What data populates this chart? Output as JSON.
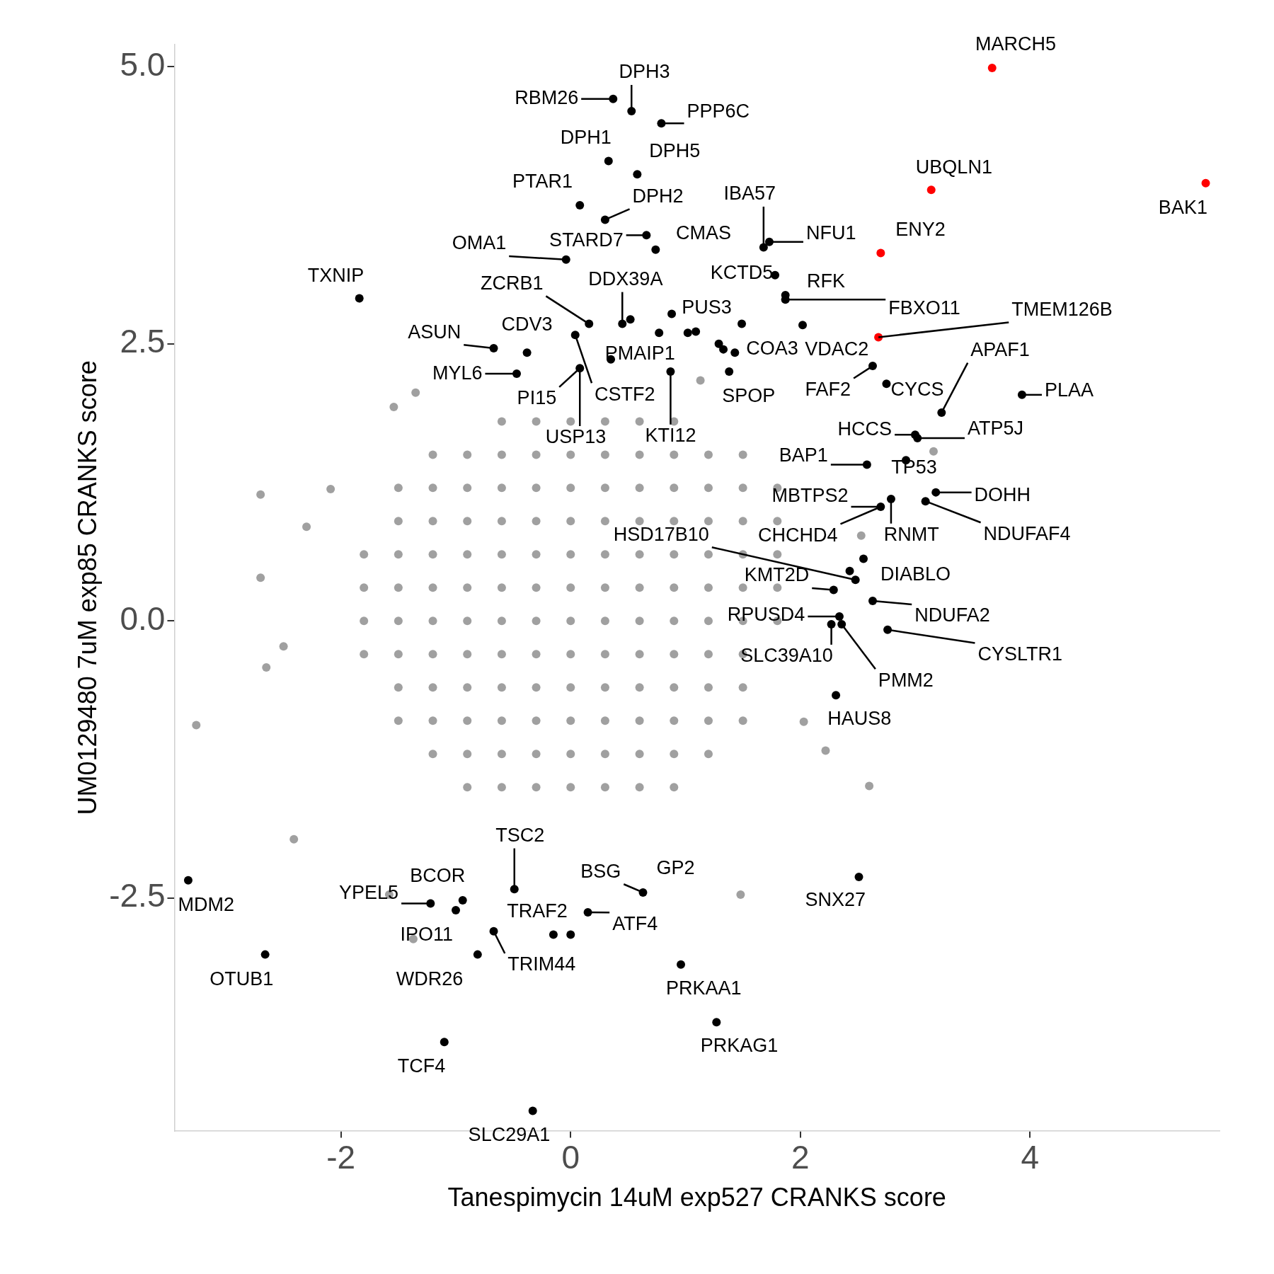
{
  "chart_data": {
    "type": "scatter",
    "xlabel": "Tanespimycin 14uM exp527 CRANKS score",
    "ylabel": "UM0129480 7uM exp85 CRANKS score",
    "xlim": [
      -3.45,
      5.65
    ],
    "ylim": [
      -4.6,
      5.2
    ],
    "xticks": [
      -2,
      0,
      2,
      4
    ],
    "yticks": [
      -2.5,
      {
        "value": 0,
        "label": "0.0"
      },
      2.5,
      {
        "value": 5,
        "label": "5.0"
      }
    ],
    "grid": false,
    "legend": false,
    "marker": "circle",
    "series": [
      {
        "color": "#a0a0a0",
        "x": [
          -0.6,
          -0.3,
          0,
          0.3,
          0.6,
          0.9,
          -1.2,
          -0.9,
          -0.6,
          -0.3,
          0,
          0.3,
          0.6,
          0.9,
          1.2,
          1.5,
          -1.5,
          -1.2,
          -0.9,
          -0.6,
          -0.3,
          0,
          0.3,
          0.6,
          0.9,
          1.2,
          1.5,
          1.8,
          -1.5,
          -1.2,
          -0.9,
          -0.6,
          -0.3,
          0,
          0.3,
          0.6,
          0.9,
          1.2,
          1.5,
          1.8,
          -1.8,
          -1.5,
          -1.2,
          -0.9,
          -0.6,
          -0.3,
          0,
          0.3,
          0.6,
          0.9,
          1.2,
          1.5,
          1.8,
          -1.8,
          -1.5,
          -1.2,
          -0.9,
          -0.6,
          -0.3,
          0,
          0.3,
          0.6,
          0.9,
          1.2,
          1.5,
          1.8,
          -1.8,
          -1.5,
          -1.2,
          -0.9,
          -0.6,
          -0.3,
          0,
          0.3,
          0.6,
          0.9,
          1.2,
          1.5,
          1.8,
          -1.8,
          -1.5,
          -1.2,
          -0.9,
          -0.6,
          -0.3,
          0,
          0.3,
          0.6,
          0.9,
          1.2,
          1.5,
          -1.5,
          -1.2,
          -0.9,
          -0.6,
          -0.3,
          0,
          0.3,
          0.6,
          0.9,
          1.2,
          1.5,
          -1.5,
          -1.2,
          -0.9,
          -0.6,
          -0.3,
          0,
          0.3,
          0.6,
          0.9,
          1.2,
          1.5,
          -1.2,
          -0.9,
          -0.6,
          -0.3,
          0,
          0.3,
          0.6,
          0.9,
          1.2,
          -0.9,
          -0.6,
          -0.3,
          0,
          0.3,
          0.6,
          0.9,
          -2.7,
          -2.7,
          -3.26,
          -2.65,
          2.6,
          1.48,
          2.22,
          -1.54,
          -1.35,
          -2.3,
          -2.5,
          -2.41,
          -2.09,
          -1.58,
          -1.37,
          1.13,
          3.16,
          2.53,
          2.03
        ],
        "values": [
          1.8,
          1.8,
          1.8,
          1.8,
          1.8,
          1.8,
          1.5,
          1.5,
          1.5,
          1.5,
          1.5,
          1.5,
          1.5,
          1.5,
          1.5,
          1.5,
          1.2,
          1.2,
          1.2,
          1.2,
          1.2,
          1.2,
          1.2,
          1.2,
          1.2,
          1.2,
          1.2,
          1.2,
          0.9,
          0.9,
          0.9,
          0.9,
          0.9,
          0.9,
          0.9,
          0.9,
          0.9,
          0.9,
          0.9,
          0.9,
          0.6,
          0.6,
          0.6,
          0.6,
          0.6,
          0.6,
          0.6,
          0.6,
          0.6,
          0.6,
          0.6,
          0.6,
          0.6,
          0.3,
          0.3,
          0.3,
          0.3,
          0.3,
          0.3,
          0.3,
          0.3,
          0.3,
          0.3,
          0.3,
          0.3,
          0.3,
          0,
          0,
          0,
          0,
          0,
          0,
          0,
          0,
          0,
          0,
          0,
          0,
          0,
          -0.3,
          -0.3,
          -0.3,
          -0.3,
          -0.3,
          -0.3,
          -0.3,
          -0.3,
          -0.3,
          -0.3,
          -0.3,
          -0.3,
          -0.6,
          -0.6,
          -0.6,
          -0.6,
          -0.6,
          -0.6,
          -0.6,
          -0.6,
          -0.6,
          -0.6,
          -0.6,
          -0.9,
          -0.9,
          -0.9,
          -0.9,
          -0.9,
          -0.9,
          -0.9,
          -0.9,
          -0.9,
          -0.9,
          -0.9,
          -1.2,
          -1.2,
          -1.2,
          -1.2,
          -1.2,
          -1.2,
          -1.2,
          -1.2,
          -1.2,
          -1.5,
          -1.5,
          -1.5,
          -1.5,
          -1.5,
          -1.5,
          -1.5,
          1.14,
          0.39,
          -0.94,
          -0.42,
          -1.49,
          -2.47,
          -1.17,
          1.93,
          2.06,
          0.85,
          -0.23,
          -1.97,
          1.19,
          -2.47,
          -2.87,
          2.17,
          1.53,
          0.77,
          -0.91
        ]
      },
      {
        "color": "#000000",
        "x": [
          0.53,
          0.37,
          0.79,
          0.33,
          0.58,
          0.08,
          0.3,
          1.68,
          1.73,
          0.74,
          0.66,
          -0.04,
          1.78,
          -1.84,
          0.16,
          0.45,
          0.52,
          1.87,
          1.87,
          0.88,
          0.77,
          1.02,
          1.09,
          1.49,
          2.02,
          1.43,
          1.29,
          1.33,
          0.04,
          -0.67,
          -0.38,
          0.35,
          -0.47,
          0.08,
          0.87,
          1.38,
          2.75,
          2.63,
          3.23,
          3.93,
          3.0,
          3.02,
          2.58,
          2.92,
          2.79,
          3.18,
          3.09,
          2.7,
          2.55,
          2.43,
          2.48,
          2.29,
          2.63,
          2.76,
          2.34,
          2.27,
          2.36,
          2.31,
          2.51,
          -3.33,
          -2.66,
          -0.49,
          -1.22,
          -0.94,
          -1.0,
          0.63,
          0.15,
          -0.15,
          0.0,
          -0.67,
          -0.81,
          0.96,
          1.27,
          -1.1,
          -0.33
        ],
        "values": [
          4.6,
          4.71,
          4.49,
          4.15,
          4.03,
          3.75,
          3.62,
          3.37,
          3.42,
          3.35,
          3.48,
          3.26,
          3.12,
          2.91,
          2.68,
          2.68,
          2.72,
          2.94,
          2.9,
          2.77,
          2.6,
          2.6,
          2.61,
          2.68,
          2.67,
          2.42,
          2.5,
          2.45,
          2.58,
          2.46,
          2.42,
          2.36,
          2.23,
          2.28,
          2.25,
          2.25,
          2.14,
          2.3,
          1.88,
          2.04,
          1.68,
          1.65,
          1.41,
          1.45,
          1.1,
          1.16,
          1.08,
          1.03,
          0.56,
          0.45,
          0.37,
          0.28,
          0.18,
          -0.08,
          0.04,
          -0.03,
          -0.03,
          -0.67,
          -2.31,
          -2.34,
          -3.01,
          -2.42,
          -2.55,
          -2.52,
          -2.61,
          -2.45,
          -2.63,
          -2.83,
          -2.83,
          -2.8,
          -3.01,
          -3.1,
          -3.62,
          -3.8,
          -4.42
        ]
      },
      {
        "color": "#ff0000",
        "x": [
          3.67,
          3.14,
          5.53,
          2.7,
          2.68
        ],
        "values": [
          4.99,
          3.89,
          3.95,
          3.32,
          2.56
        ]
      }
    ],
    "annotations": [
      {
        "text": "MARCH5",
        "x": 3.67,
        "y": 4.99
      },
      {
        "text": "UBQLN1",
        "x": 3.14,
        "y": 3.89
      },
      {
        "text": "BAK1",
        "x": 5.53,
        "y": 3.95
      },
      {
        "text": "ENY2",
        "x": 2.7,
        "y": 3.32
      },
      {
        "text": "TMEM126B",
        "x": 2.68,
        "y": 2.56
      },
      {
        "text": "DPH3",
        "x": 0.53,
        "y": 4.6
      },
      {
        "text": "RBM26",
        "x": 0.37,
        "y": 4.71
      },
      {
        "text": "PPP6C",
        "x": 0.79,
        "y": 4.49
      },
      {
        "text": "DPH1",
        "x": 0.33,
        "y": 4.15
      },
      {
        "text": "DPH5",
        "x": 0.58,
        "y": 4.03
      },
      {
        "text": "PTAR1",
        "x": 0.08,
        "y": 3.75
      },
      {
        "text": "DPH2",
        "x": 0.3,
        "y": 3.62
      },
      {
        "text": "IBA57",
        "x": 1.68,
        "y": 3.37
      },
      {
        "text": "NFU1",
        "x": 1.73,
        "y": 3.42
      },
      {
        "text": "CMAS",
        "x": 0.74,
        "y": 3.35
      },
      {
        "text": "STARD7",
        "x": 0.66,
        "y": 3.48
      },
      {
        "text": "OMA1",
        "x": -0.04,
        "y": 3.26
      },
      {
        "text": "KCTD5",
        "x": 1.78,
        "y": 3.12
      },
      {
        "text": "TXNIP",
        "x": -1.84,
        "y": 2.91
      },
      {
        "text": "ZCRB1",
        "x": 0.16,
        "y": 2.68
      },
      {
        "text": "DDX39A",
        "x": 0.45,
        "y": 2.68
      },
      {
        "text": "RFK",
        "x": 1.87,
        "y": 2.94
      },
      {
        "text": "FBXO11",
        "x": 1.87,
        "y": 2.9
      },
      {
        "text": "PUS3",
        "x": 0.88,
        "y": 2.77
      },
      {
        "text": "VDAC2",
        "x": 2.02,
        "y": 2.67
      },
      {
        "text": "COA3",
        "x": 1.43,
        "y": 2.42
      },
      {
        "text": "CDV3",
        "x": -0.38,
        "y": 2.42
      },
      {
        "text": "ASUN",
        "x": -0.67,
        "y": 2.46
      },
      {
        "text": "PMAIP1",
        "x": 0.35,
        "y": 2.36
      },
      {
        "text": "MYL6",
        "x": -0.47,
        "y": 2.23
      },
      {
        "text": "PI15",
        "x": 0.08,
        "y": 2.28
      },
      {
        "text": "CSTF2",
        "x": 0.04,
        "y": 2.58
      },
      {
        "text": "USP13",
        "x": 0.08,
        "y": 2.28
      },
      {
        "text": "KTI12",
        "x": 0.87,
        "y": 2.25
      },
      {
        "text": "SPOP",
        "x": 1.38,
        "y": 2.25
      },
      {
        "text": "FAF2",
        "x": 2.63,
        "y": 2.3
      },
      {
        "text": "CYCS",
        "x": 2.75,
        "y": 2.14
      },
      {
        "text": "APAF1",
        "x": 3.23,
        "y": 1.88
      },
      {
        "text": "PLAA",
        "x": 3.93,
        "y": 2.04
      },
      {
        "text": "HCCS",
        "x": 3.0,
        "y": 1.68
      },
      {
        "text": "ATP5J",
        "x": 3.02,
        "y": 1.65
      },
      {
        "text": "BAP1",
        "x": 2.58,
        "y": 1.41
      },
      {
        "text": "TP53",
        "x": 2.92,
        "y": 1.45
      },
      {
        "text": "MBTPS2",
        "x": 2.7,
        "y": 1.03
      },
      {
        "text": "DOHH",
        "x": 3.18,
        "y": 1.16
      },
      {
        "text": "NDUFAF4",
        "x": 3.09,
        "y": 1.08
      },
      {
        "text": "RNMT",
        "x": 2.79,
        "y": 1.1
      },
      {
        "text": "CHCHD4",
        "x": 2.7,
        "y": 1.03
      },
      {
        "text": "DIABLO",
        "x": 2.55,
        "y": 0.56
      },
      {
        "text": "HSD17B10",
        "x": 2.48,
        "y": 0.37
      },
      {
        "text": "KMT2D",
        "x": 2.29,
        "y": 0.28
      },
      {
        "text": "NDUFA2",
        "x": 2.63,
        "y": 0.18
      },
      {
        "text": "CYSLTR1",
        "x": 2.76,
        "y": -0.08
      },
      {
        "text": "RPUSD4",
        "x": 2.34,
        "y": 0.04
      },
      {
        "text": "SLC39A10",
        "x": 2.27,
        "y": -0.03
      },
      {
        "text": "PMM2",
        "x": 2.36,
        "y": -0.03
      },
      {
        "text": "HAUS8",
        "x": 2.31,
        "y": -0.67
      },
      {
        "text": "SNX27",
        "x": 2.51,
        "y": -2.31
      },
      {
        "text": "MDM2",
        "x": -3.33,
        "y": -2.34
      },
      {
        "text": "OTUB1",
        "x": -2.66,
        "y": -3.01
      },
      {
        "text": "TSC2",
        "x": -0.49,
        "y": -2.42
      },
      {
        "text": "YPEL5",
        "x": -1.22,
        "y": -2.55
      },
      {
        "text": "BCOR",
        "x": -0.94,
        "y": -2.52
      },
      {
        "text": "IPO11",
        "x": -1.0,
        "y": -2.61
      },
      {
        "text": "GP2",
        "x": 0.63,
        "y": -2.45
      },
      {
        "text": "BSG",
        "x": 0.63,
        "y": -2.45
      },
      {
        "text": "ATF4",
        "x": 0.15,
        "y": -2.63
      },
      {
        "text": "TRAF2",
        "x": -0.15,
        "y": -2.83
      },
      {
        "text": "TRIM44",
        "x": -0.67,
        "y": -2.8
      },
      {
        "text": "WDR26",
        "x": -0.81,
        "y": -3.01
      },
      {
        "text": "PRKAA1",
        "x": 0.96,
        "y": -3.1
      },
      {
        "text": "PRKAG1",
        "x": 1.27,
        "y": -3.62
      },
      {
        "text": "TCF4",
        "x": -1.1,
        "y": -3.8
      },
      {
        "text": "SLC29A1",
        "x": -0.33,
        "y": -4.42
      }
    ]
  }
}
